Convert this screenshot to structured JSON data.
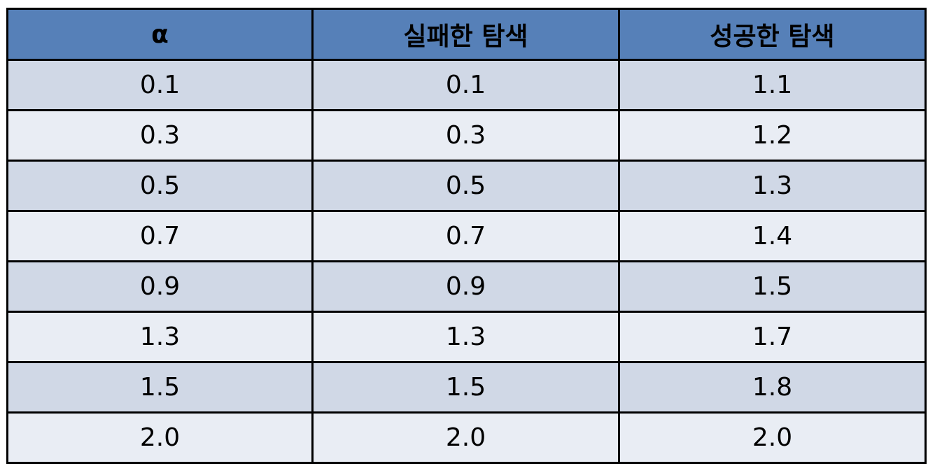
{
  "clipped_text": "2",
  "colors": {
    "header_bg": "#5680b8",
    "row_odd_bg": "#d0d8e6",
    "row_even_bg": "#e9edf4",
    "border": "#000000"
  },
  "table": {
    "headers": [
      "α",
      "실패한 탐색",
      "성공한 탐색"
    ],
    "rows": [
      [
        "0.1",
        "0.1",
        "1.1"
      ],
      [
        "0.3",
        "0.3",
        "1.2"
      ],
      [
        "0.5",
        "0.5",
        "1.3"
      ],
      [
        "0.7",
        "0.7",
        "1.4"
      ],
      [
        "0.9",
        "0.9",
        "1.5"
      ],
      [
        "1.3",
        "1.3",
        "1.7"
      ],
      [
        "1.5",
        "1.5",
        "1.8"
      ],
      [
        "2.0",
        "2.0",
        "2.0"
      ]
    ]
  }
}
